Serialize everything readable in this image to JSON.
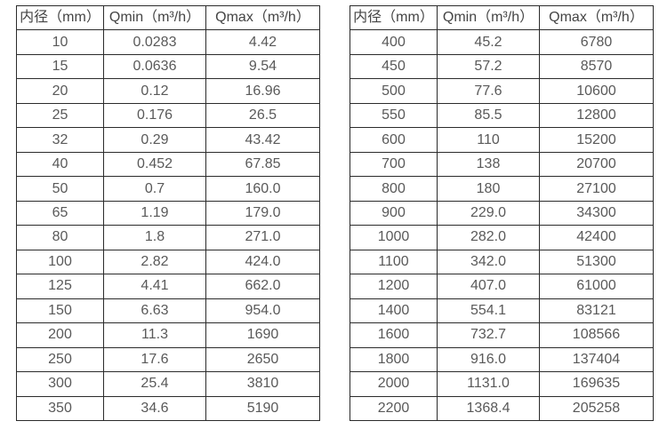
{
  "colors": {
    "background": "#ffffff",
    "border": "#2b2b2b",
    "header_text": "#444444",
    "cell_text": "#595959"
  },
  "tables": [
    {
      "name": "flow-rate-table-small-diameters",
      "headers": [
        "内径（mm）",
        "Qmin（m³/h）",
        "Qmax（m³/h）"
      ],
      "rows": [
        [
          "10",
          "0.0283",
          "4.42"
        ],
        [
          "15",
          "0.0636",
          "9.54"
        ],
        [
          "20",
          "0.12",
          "16.96"
        ],
        [
          "25",
          "0.176",
          "26.5"
        ],
        [
          "32",
          "0.29",
          "43.42"
        ],
        [
          "40",
          "0.452",
          "67.85"
        ],
        [
          "50",
          "0.7",
          "160.0"
        ],
        [
          "65",
          "1.19",
          "179.0"
        ],
        [
          "80",
          "1.8",
          "271.0"
        ],
        [
          "100",
          "2.82",
          "424.0"
        ],
        [
          "125",
          "4.41",
          "662.0"
        ],
        [
          "150",
          "6.63",
          "954.0"
        ],
        [
          "200",
          "11.3",
          "1690"
        ],
        [
          "250",
          "17.6",
          "2650"
        ],
        [
          "300",
          "25.4",
          "3810"
        ],
        [
          "350",
          "34.6",
          "5190"
        ]
      ]
    },
    {
      "name": "flow-rate-table-large-diameters",
      "headers": [
        "内径（mm）",
        "Qmin（m³/h）",
        "Qmax（m³/h）"
      ],
      "rows": [
        [
          "400",
          "45.2",
          "6780"
        ],
        [
          "450",
          "57.2",
          "8570"
        ],
        [
          "500",
          "77.6",
          "10600"
        ],
        [
          "550",
          "85.5",
          "12800"
        ],
        [
          "600",
          "110",
          "15200"
        ],
        [
          "700",
          "138",
          "20700"
        ],
        [
          "800",
          "180",
          "27100"
        ],
        [
          "900",
          "229.0",
          "34300"
        ],
        [
          "1000",
          "282.0",
          "42400"
        ],
        [
          "1100",
          "342.0",
          "51300"
        ],
        [
          "1200",
          "407.0",
          "61000"
        ],
        [
          "1400",
          "554.1",
          "83121"
        ],
        [
          "1600",
          "732.7",
          "108566"
        ],
        [
          "1800",
          "916.0",
          "137404"
        ],
        [
          "2000",
          "1131.0",
          "169635"
        ],
        [
          "2200",
          "1368.4",
          "205258"
        ]
      ]
    }
  ]
}
